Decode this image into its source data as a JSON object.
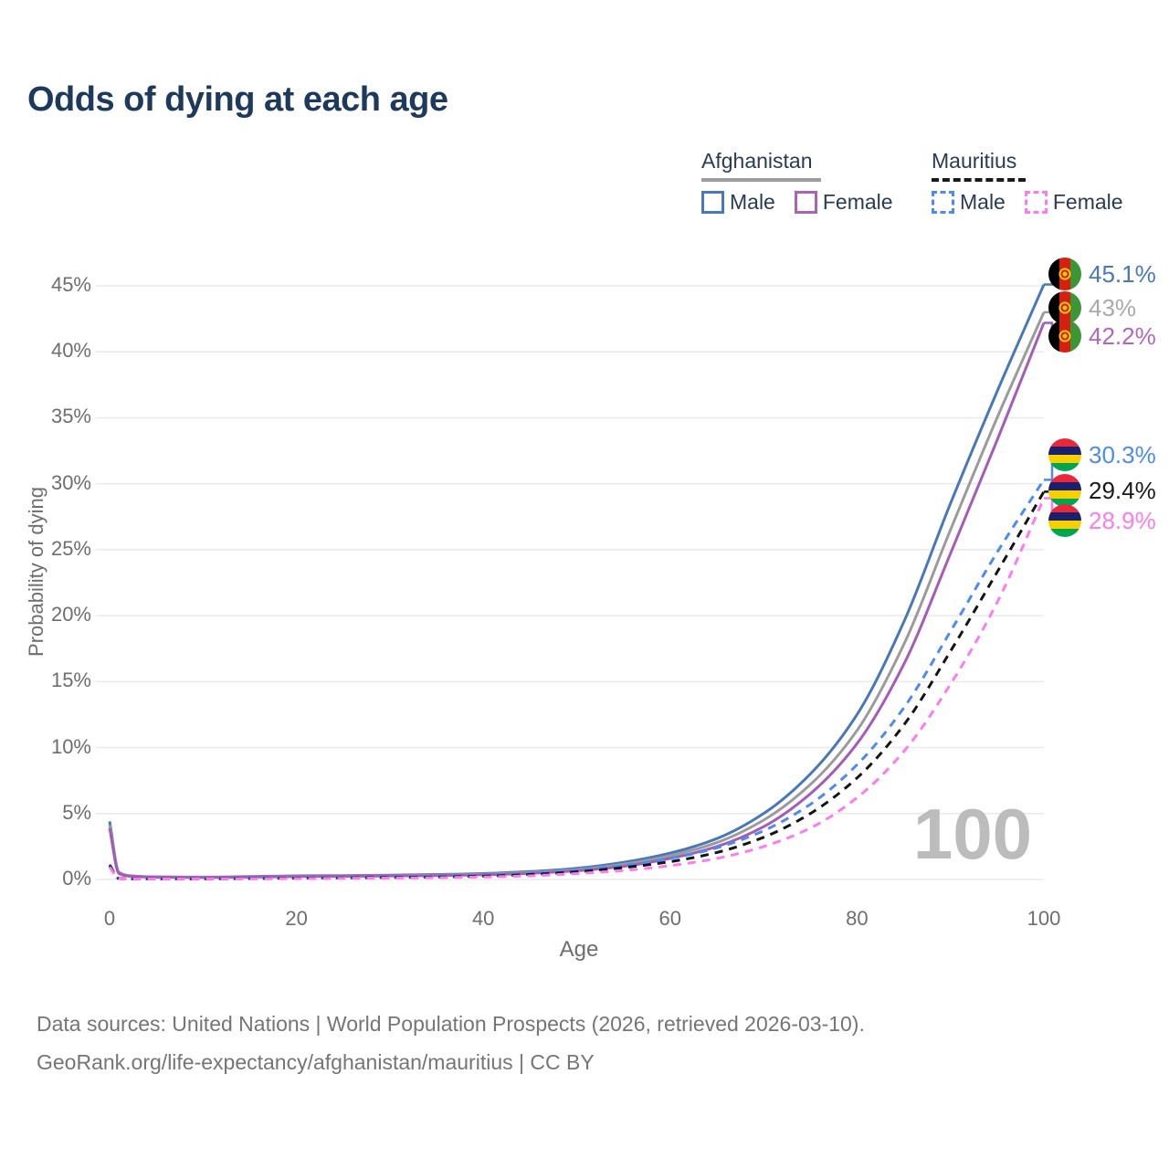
{
  "title": "Odds of dying at each age",
  "legend": {
    "groups": [
      {
        "name": "Afghanistan",
        "underline_style": "solid",
        "underline_color": "#9e9e9e",
        "items": [
          {
            "label": "Male",
            "color": "#4878b9",
            "dash": false
          },
          {
            "label": "Female",
            "color": "#aa62b4",
            "dash": false
          }
        ]
      },
      {
        "name": "Mauritius",
        "underline_style": "dashed",
        "underline_color": "#1a1a1a",
        "items": [
          {
            "label": "Male",
            "color": "#4d8af2",
            "dash": true
          },
          {
            "label": "Female",
            "color": "#fc7cf0",
            "dash": true
          }
        ]
      }
    ]
  },
  "axes": {
    "x_title": "Age",
    "y_title": "Probability of dying",
    "xticks": [
      "0",
      "20",
      "40",
      "60",
      "80",
      "100"
    ],
    "yticks": [
      "0%",
      "5%",
      "10%",
      "15%",
      "20%",
      "25%",
      "30%",
      "35%",
      "40%",
      "45%"
    ]
  },
  "hover_age": "100",
  "end_labels": [
    {
      "value": "45.1%",
      "color": "#4878b9",
      "flag": "afghanistan"
    },
    {
      "value": "43%",
      "color": "#a9a9a9",
      "flag": "afghanistan"
    },
    {
      "value": "42.2%",
      "color": "#b066c0",
      "flag": "afghanistan"
    },
    {
      "value": "30.3%",
      "color": "#4d8af2",
      "flag": "mauritius"
    },
    {
      "value": "29.4%",
      "color": "#1a1a1a",
      "flag": "mauritius"
    },
    {
      "value": "28.9%",
      "color": "#fc7cf0",
      "flag": "mauritius"
    }
  ],
  "footer": {
    "line1": "Data sources: United Nations | World Population Prospects (2026, retrieved 2026-03-10).",
    "line2": "GeoRank.org/life-expectancy/afghanistan/mauritius | CC BY"
  },
  "chart_data": {
    "type": "line",
    "title": "Odds of dying at each age",
    "xlabel": "Age",
    "ylabel": "Probability of dying",
    "xlim": [
      0,
      100
    ],
    "ylim_percent": [
      0,
      46
    ],
    "grid": "horizontal",
    "legend_position": "top-right",
    "x": [
      0,
      1,
      2,
      5,
      10,
      15,
      20,
      25,
      30,
      35,
      40,
      45,
      50,
      55,
      60,
      65,
      70,
      75,
      80,
      85,
      90,
      95,
      100
    ],
    "series": [
      {
        "name": "Afghanistan Male",
        "color": "#4878b9",
        "style": "solid",
        "end_label": "45.1%",
        "values_percent": [
          4.4,
          0.55,
          0.3,
          0.2,
          0.18,
          0.22,
          0.28,
          0.3,
          0.33,
          0.38,
          0.45,
          0.6,
          0.85,
          1.3,
          2.0,
          3.1,
          5.0,
          8.0,
          12.5,
          19.5,
          28.5,
          37.0,
          45.1
        ]
      },
      {
        "name": "Afghanistan Both sexes",
        "color": "#9b9b9b",
        "style": "solid",
        "end_label": "43%",
        "values_percent": [
          4.15,
          0.5,
          0.28,
          0.19,
          0.17,
          0.2,
          0.25,
          0.27,
          0.3,
          0.34,
          0.4,
          0.53,
          0.75,
          1.15,
          1.8,
          2.8,
          4.5,
          7.2,
          11.3,
          17.8,
          26.5,
          35.0,
          43.0
        ]
      },
      {
        "name": "Afghanistan Female",
        "color": "#a55cb8",
        "style": "solid",
        "end_label": "42.2%",
        "values_percent": [
          3.9,
          0.45,
          0.26,
          0.18,
          0.16,
          0.18,
          0.22,
          0.24,
          0.27,
          0.3,
          0.36,
          0.47,
          0.66,
          1.0,
          1.6,
          2.5,
          4.0,
          6.5,
          10.3,
          16.3,
          24.7,
          33.3,
          42.2
        ]
      },
      {
        "name": "Mauritius Male",
        "color": "#4d8af2",
        "style": "dashed",
        "end_label": "30.3%",
        "values_percent": [
          1.15,
          0.08,
          0.05,
          0.04,
          0.05,
          0.08,
          0.12,
          0.15,
          0.18,
          0.23,
          0.3,
          0.45,
          0.7,
          1.05,
          1.6,
          2.4,
          3.7,
          5.7,
          8.7,
          13.0,
          18.8,
          24.8,
          30.3
        ]
      },
      {
        "name": "Mauritius Both sexes",
        "color": "#141414",
        "style": "dashed",
        "end_label": "29.4%",
        "values_percent": [
          1.05,
          0.07,
          0.045,
          0.04,
          0.045,
          0.07,
          0.1,
          0.12,
          0.15,
          0.19,
          0.25,
          0.38,
          0.58,
          0.9,
          1.35,
          2.05,
          3.2,
          5.0,
          7.7,
          11.7,
          17.3,
          23.3,
          29.4
        ]
      },
      {
        "name": "Mauritius Female",
        "color": "#fc7cf0",
        "style": "dashed",
        "end_label": "28.9%",
        "values_percent": [
          0.95,
          0.06,
          0.04,
          0.035,
          0.04,
          0.05,
          0.07,
          0.09,
          0.11,
          0.14,
          0.19,
          0.28,
          0.45,
          0.68,
          1.05,
          1.6,
          2.5,
          3.9,
          6.2,
          9.7,
          14.8,
          21.0,
          28.9
        ]
      }
    ]
  }
}
